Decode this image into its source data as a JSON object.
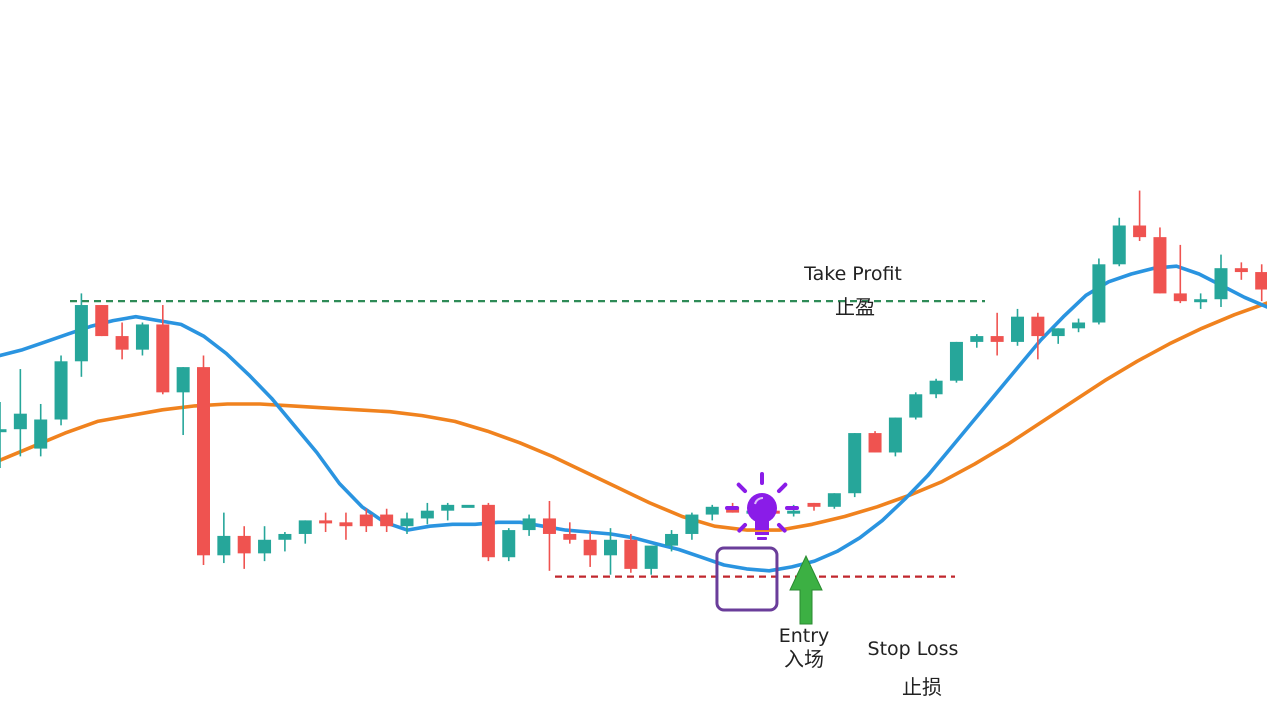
{
  "chart_data": {
    "type": "candlestick",
    "title": "",
    "xlabel": "",
    "ylabel": "",
    "grid": false,
    "colors": {
      "bull": "#26a69a",
      "bear": "#ef5350",
      "fast_ma": "#2a94e0",
      "slow_ma": "#f0821e",
      "take_profit": "#2e8b57",
      "stop_loss": "#c0272d",
      "entry_arrow": "#3cb043",
      "entry_box": "#6a3d9a",
      "idea_bulb": "#8a1ce8"
    },
    "candles": [
      {
        "o": 2.0,
        "h": 3.4,
        "l": 0.0,
        "c": 2.0
      },
      {
        "o": 2.0,
        "h": 5.1,
        "l": 0.6,
        "c": 2.8
      },
      {
        "o": 1.0,
        "h": 3.3,
        "l": 0.6,
        "c": 2.5
      },
      {
        "o": 2.5,
        "h": 5.8,
        "l": 2.2,
        "c": 5.5
      },
      {
        "o": 5.5,
        "h": 9.0,
        "l": 4.7,
        "c": 8.4
      },
      {
        "o": 8.4,
        "h": 8.4,
        "l": 6.8,
        "c": 6.8
      },
      {
        "o": 6.8,
        "h": 7.5,
        "l": 5.6,
        "c": 6.1
      },
      {
        "o": 6.1,
        "h": 7.5,
        "l": 5.8,
        "c": 7.4
      },
      {
        "o": 7.4,
        "h": 8.4,
        "l": 3.8,
        "c": 3.9
      },
      {
        "o": 3.9,
        "h": 5.2,
        "l": 1.7,
        "c": 5.2
      },
      {
        "o": 5.2,
        "h": 5.8,
        "l": -5.0,
        "c": -4.5
      },
      {
        "o": -4.5,
        "h": -2.3,
        "l": -4.9,
        "c": -3.5
      },
      {
        "o": -3.5,
        "h": -3.0,
        "l": -5.2,
        "c": -4.4
      },
      {
        "o": -4.4,
        "h": -3.0,
        "l": -4.8,
        "c": -3.7
      },
      {
        "o": -3.7,
        "h": -3.3,
        "l": -4.3,
        "c": -3.4
      },
      {
        "o": -3.4,
        "h": -2.7,
        "l": -3.9,
        "c": -2.7
      },
      {
        "o": -2.7,
        "h": -2.3,
        "l": -3.3,
        "c": -2.8
      },
      {
        "o": -2.8,
        "h": -2.3,
        "l": -3.7,
        "c": -3.0
      },
      {
        "o": -2.4,
        "h": -2.1,
        "l": -3.3,
        "c": -3.0
      },
      {
        "o": -2.4,
        "h": -2.1,
        "l": -3.3,
        "c": -3.0
      },
      {
        "o": -3.0,
        "h": -2.3,
        "l": -3.4,
        "c": -2.6
      },
      {
        "o": -2.6,
        "h": -1.8,
        "l": -2.9,
        "c": -2.2
      },
      {
        "o": -2.2,
        "h": -1.8,
        "l": -2.7,
        "c": -1.9
      },
      {
        "o": -1.9,
        "h": -1.9,
        "l": -1.9,
        "c": -1.9
      },
      {
        "o": -1.9,
        "h": -1.8,
        "l": -4.8,
        "c": -4.6
      },
      {
        "o": -4.6,
        "h": -3.1,
        "l": -4.8,
        "c": -3.2
      },
      {
        "o": -3.2,
        "h": -2.4,
        "l": -3.5,
        "c": -2.6
      },
      {
        "o": -2.6,
        "h": -1.7,
        "l": -5.3,
        "c": -3.4
      },
      {
        "o": -3.4,
        "h": -2.8,
        "l": -3.9,
        "c": -3.7
      },
      {
        "o": -3.7,
        "h": -3.3,
        "l": -5.1,
        "c": -4.5
      },
      {
        "o": -4.5,
        "h": -3.1,
        "l": -5.5,
        "c": -3.7
      },
      {
        "o": -3.7,
        "h": -3.4,
        "l": -5.4,
        "c": -5.2
      },
      {
        "o": -5.2,
        "h": -4.1,
        "l": -5.5,
        "c": -4.0
      },
      {
        "o": -4.0,
        "h": -3.2,
        "l": -4.3,
        "c": -3.4
      },
      {
        "o": -3.4,
        "h": -2.3,
        "l": -3.7,
        "c": -2.4
      },
      {
        "o": -2.4,
        "h": -1.9,
        "l": -2.7,
        "c": -2.0
      },
      {
        "o": -2.0,
        "h": -1.8,
        "l": -2.3,
        "c": -2.3
      },
      {
        "o": -2.3,
        "h": -2.1,
        "l": -2.4,
        "c": -2.2
      },
      {
        "o": -2.2,
        "h": -2.1,
        "l": -2.3,
        "c": -2.3
      },
      {
        "o": -2.2,
        "h": -1.9,
        "l": -2.5,
        "c": -2.2
      },
      {
        "o": -1.8,
        "h": -1.8,
        "l": -2.2,
        "c": -2.0
      },
      {
        "o": -2.0,
        "h": -1.3,
        "l": -2.1,
        "c": -1.3
      },
      {
        "o": -1.3,
        "h": 1.8,
        "l": -1.5,
        "c": 1.8
      },
      {
        "o": 1.8,
        "h": 1.9,
        "l": 0.8,
        "c": 0.8
      },
      {
        "o": 0.8,
        "h": 2.6,
        "l": 0.6,
        "c": 2.6
      },
      {
        "o": 2.6,
        "h": 3.9,
        "l": 2.5,
        "c": 3.8
      },
      {
        "o": 3.8,
        "h": 4.6,
        "l": 3.6,
        "c": 4.5
      },
      {
        "o": 4.5,
        "h": 6.5,
        "l": 4.4,
        "c": 6.5
      },
      {
        "o": 6.5,
        "h": 6.9,
        "l": 6.2,
        "c": 6.8
      },
      {
        "o": 6.8,
        "h": 8.0,
        "l": 5.8,
        "c": 6.5
      },
      {
        "o": 6.5,
        "h": 8.2,
        "l": 6.3,
        "c": 7.8
      },
      {
        "o": 7.8,
        "h": 8.0,
        "l": 5.6,
        "c": 6.8
      },
      {
        "o": 6.8,
        "h": 7.2,
        "l": 6.4,
        "c": 7.2
      },
      {
        "o": 7.2,
        "h": 7.7,
        "l": 7.0,
        "c": 7.5
      },
      {
        "o": 7.5,
        "h": 10.8,
        "l": 7.4,
        "c": 10.5
      },
      {
        "o": 10.5,
        "h": 12.9,
        "l": 10.4,
        "c": 12.5
      },
      {
        "o": 12.5,
        "h": 14.3,
        "l": 11.7,
        "c": 11.9
      },
      {
        "o": 11.9,
        "h": 12.4,
        "l": 9.0,
        "c": 9.0
      },
      {
        "o": 9.0,
        "h": 11.5,
        "l": 8.5,
        "c": 8.6
      },
      {
        "o": 8.6,
        "h": 9.0,
        "l": 8.2,
        "c": 8.7
      },
      {
        "o": 8.7,
        "h": 11.0,
        "l": 8.3,
        "c": 10.3
      },
      {
        "o": 10.3,
        "h": 10.6,
        "l": 9.7,
        "c": 10.1
      },
      {
        "o": 10.1,
        "h": 10.5,
        "l": 8.6,
        "c": 9.2
      },
      {
        "o": 9.2,
        "h": 9.5,
        "l": 8.4,
        "c": 9.0
      },
      {
        "o": 9.0,
        "h": 9.2,
        "l": 8.8,
        "c": 9.0
      }
    ],
    "fast_ma": [
      5.8,
      6.1,
      6.5,
      6.9,
      7.3,
      7.6,
      7.8,
      7.6,
      7.4,
      6.8,
      5.9,
      4.8,
      3.6,
      2.2,
      0.8,
      -0.8,
      -2.0,
      -2.8,
      -3.2,
      -3.0,
      -2.9,
      -2.9,
      -2.8,
      -2.8,
      -3.0,
      -3.2,
      -3.3,
      -3.4,
      -3.6,
      -3.9,
      -4.2,
      -4.6,
      -5.0,
      -5.2,
      -5.3,
      -5.1,
      -4.8,
      -4.3,
      -3.6,
      -2.7,
      -1.6,
      -0.4,
      1.0,
      2.4,
      3.8,
      5.2,
      6.6,
      7.8,
      8.9,
      9.6,
      10.0,
      10.3,
      10.4,
      10.0,
      9.4,
      8.8,
      8.3
    ],
    "slow_ma": [
      0.4,
      1.1,
      1.8,
      2.4,
      2.7,
      3.0,
      3.2,
      3.3,
      3.3,
      3.2,
      3.1,
      3.0,
      2.9,
      2.7,
      2.4,
      1.9,
      1.3,
      0.6,
      -0.2,
      -1.0,
      -1.8,
      -2.5,
      -3.0,
      -3.2,
      -3.2,
      -2.9,
      -2.5,
      -2.0,
      -1.4,
      -0.7,
      0.2,
      1.2,
      2.3,
      3.4,
      4.5,
      5.5,
      6.4,
      7.2,
      7.9,
      8.5
    ],
    "levels": {
      "take_profit": 8.6,
      "stop_loss": -5.6
    },
    "annotations": {
      "take_profit_en": "Take Profit",
      "take_profit_zh": "止盈",
      "stop_loss_en": "Stop Loss",
      "stop_loss_zh": "止损",
      "entry_en": "Entry",
      "entry_zh": "入场"
    },
    "entry_index": 38,
    "signal_index": 37,
    "icons": [
      "lightbulb-icon",
      "up-arrow-icon"
    ]
  }
}
